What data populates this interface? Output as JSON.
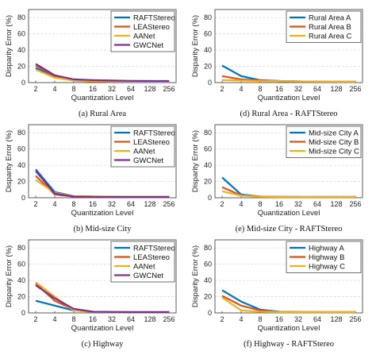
{
  "colors": {
    "blue": "#0072BD",
    "red": "#D95319",
    "yellow": "#EDB120",
    "purple": "#7E2F8E",
    "grid": "#dddddd"
  },
  "chart_data": [
    {
      "type": "line",
      "caption": "(a) Rural Area",
      "xlabel": "Quantization Level",
      "ylabel": "Disparity Error (%)",
      "categories": [
        "2",
        "4",
        "8",
        "16",
        "32",
        "64",
        "128",
        "256"
      ],
      "ylim": [
        0,
        90
      ],
      "yticks": [
        0,
        20,
        40,
        60,
        80
      ],
      "legend_position": "top-right",
      "series": [
        {
          "name": "RAFTStereo",
          "color": "#0072BD",
          "values": [
            18,
            7,
            2.5,
            1.5,
            1.2,
            1.0,
            1.0,
            1.0
          ]
        },
        {
          "name": "LEAStereo",
          "color": "#D95319",
          "values": [
            21,
            8,
            3,
            2,
            1.5,
            1.3,
            1.2,
            1.2
          ]
        },
        {
          "name": "AANet",
          "color": "#EDB120",
          "values": [
            16,
            6,
            2.5,
            1.8,
            1.5,
            1.3,
            1.2,
            1.2
          ]
        },
        {
          "name": "GWCNet",
          "color": "#7E2F8E",
          "values": [
            23,
            9,
            4,
            3,
            2.5,
            2.2,
            2.0,
            2.0
          ]
        }
      ]
    },
    {
      "type": "line",
      "caption": "(d) Rural Area - RAFTStereo",
      "xlabel": "Quantization Level",
      "ylabel": "Disparity Error (%)",
      "categories": [
        "2",
        "4",
        "8",
        "16",
        "32",
        "64",
        "128",
        "256"
      ],
      "ylim": [
        0,
        90
      ],
      "yticks": [
        0,
        20,
        40,
        60,
        80
      ],
      "legend_position": "top-right",
      "series": [
        {
          "name": "Rural Area A",
          "color": "#0072BD",
          "values": [
            21,
            8,
            3,
            2,
            1.5,
            1.2,
            1.0,
            1.0
          ]
        },
        {
          "name": "Rural Area B",
          "color": "#D95319",
          "values": [
            8,
            4,
            2.5,
            2,
            1.5,
            1.2,
            1.0,
            1.0
          ]
        },
        {
          "name": "Rural Area C",
          "color": "#EDB120",
          "values": [
            3,
            2.5,
            2,
            1.8,
            1.5,
            1.3,
            1.2,
            1.2
          ]
        }
      ]
    },
    {
      "type": "line",
      "caption": "(b) Mid-size City",
      "xlabel": "Quantization Level",
      "ylabel": "Disparity Error (%)",
      "categories": [
        "2",
        "4",
        "8",
        "16",
        "32",
        "64",
        "128",
        "256"
      ],
      "ylim": [
        0,
        90
      ],
      "yticks": [
        0,
        20,
        40,
        60,
        80
      ],
      "legend_position": "top-right",
      "series": [
        {
          "name": "RAFTStereo",
          "color": "#0072BD",
          "values": [
            35,
            7,
            2,
            1.5,
            1.2,
            1.0,
            1.0,
            1.0
          ]
        },
        {
          "name": "LEAStereo",
          "color": "#D95319",
          "values": [
            27,
            4,
            1.5,
            1.2,
            1.0,
            1.0,
            1.0,
            1.0
          ]
        },
        {
          "name": "AANet",
          "color": "#EDB120",
          "values": [
            22,
            6,
            2,
            1.5,
            1.2,
            1.0,
            1.0,
            1.0
          ]
        },
        {
          "name": "GWCNet",
          "color": "#7E2F8E",
          "values": [
            33,
            5,
            1.5,
            1.2,
            1.0,
            1.0,
            1.0,
            1.0
          ]
        }
      ]
    },
    {
      "type": "line",
      "caption": "(e) Mid-size City - RAFTStereo",
      "xlabel": "Quantization Level",
      "ylabel": "Disparity Error (%)",
      "categories": [
        "2",
        "4",
        "8",
        "16",
        "32",
        "64",
        "128",
        "256"
      ],
      "ylim": [
        0,
        90
      ],
      "yticks": [
        0,
        20,
        40,
        60,
        80
      ],
      "legend_position": "top-right",
      "series": [
        {
          "name": "Mid-size City A",
          "color": "#0072BD",
          "values": [
            25,
            4,
            1.5,
            1.2,
            1.0,
            1.0,
            1.0,
            1.0
          ]
        },
        {
          "name": "Mid-size City B",
          "color": "#D95319",
          "values": [
            13,
            3,
            1.5,
            1.2,
            1.0,
            1.0,
            1.0,
            1.0
          ]
        },
        {
          "name": "Mid-size City C",
          "color": "#EDB120",
          "values": [
            8,
            2.5,
            1.3,
            1.0,
            1.0,
            1.0,
            1.0,
            1.0
          ]
        }
      ]
    },
    {
      "type": "line",
      "caption": "(c) Highway",
      "xlabel": "Quantization Level",
      "ylabel": "Disparity Error (%)",
      "categories": [
        "2",
        "4",
        "8",
        "16",
        "32",
        "64",
        "128",
        "256"
      ],
      "ylim": [
        0,
        90
      ],
      "yticks": [
        0,
        20,
        40,
        60,
        80
      ],
      "legend_position": "top-right",
      "series": [
        {
          "name": "RAFTStereo",
          "color": "#0072BD",
          "values": [
            15,
            9,
            3,
            1.5,
            1.2,
            1.0,
            1.0,
            1.0
          ]
        },
        {
          "name": "LEAStereo",
          "color": "#D95319",
          "values": [
            36,
            15,
            4,
            1.5,
            1.2,
            1.0,
            1.0,
            1.0
          ]
        },
        {
          "name": "AANet",
          "color": "#EDB120",
          "values": [
            38,
            20,
            3,
            1.2,
            1.0,
            1.0,
            1.0,
            1.0
          ]
        },
        {
          "name": "GWCNet",
          "color": "#7E2F8E",
          "values": [
            34,
            18,
            5,
            1.5,
            1.2,
            1.0,
            1.0,
            1.0
          ]
        }
      ]
    },
    {
      "type": "line",
      "caption": "(f) Highway - RAFTStereo",
      "xlabel": "Quantization Level",
      "ylabel": "Disparity Error (%)",
      "categories": [
        "2",
        "4",
        "8",
        "16",
        "32",
        "64",
        "128",
        "256"
      ],
      "ylim": [
        0,
        90
      ],
      "yticks": [
        0,
        20,
        40,
        60,
        80
      ],
      "legend_position": "top-right",
      "series": [
        {
          "name": "Highway A",
          "color": "#0072BD",
          "values": [
            28,
            14,
            4,
            1.5,
            1.2,
            1.0,
            1.0,
            1.0
          ]
        },
        {
          "name": "Highway B",
          "color": "#D95319",
          "values": [
            21,
            9,
            3,
            1.3,
            1.0,
            1.0,
            1.0,
            1.0
          ]
        },
        {
          "name": "Highway C",
          "color": "#EDB120",
          "values": [
            19,
            3,
            1.5,
            1.0,
            1.0,
            1.0,
            1.0,
            1.0
          ]
        }
      ]
    }
  ]
}
